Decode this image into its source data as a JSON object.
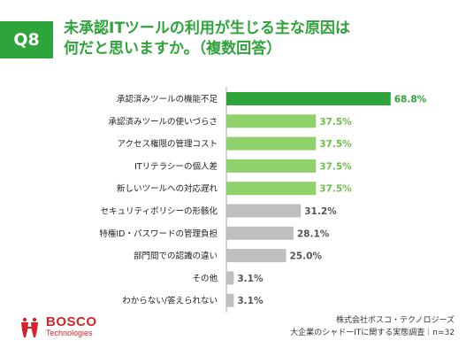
{
  "question": {
    "number": "Q8",
    "title_line1": "未承認ITツールの利用が生じる主な原因は",
    "title_line2": "何だと思いますか。（複数回答）"
  },
  "chart_data": {
    "type": "bar",
    "orientation": "horizontal",
    "categories": [
      "承認済みツールの機能不足",
      "承認済みツールの使いづらさ",
      "アクセス権限の管理コスト",
      "ITリテラシーの個人差",
      "新しいツールへの対応遅れ",
      "セキュリティポリシーの形骸化",
      "特権ID・パスワードの管理負担",
      "部門間での認識の違い",
      "その他",
      "わからない/答えられない"
    ],
    "values": [
      68.8,
      37.5,
      37.5,
      37.5,
      37.5,
      31.2,
      28.1,
      25.0,
      3.1,
      3.1
    ],
    "value_labels": [
      "68.8%",
      "37.5%",
      "37.5%",
      "37.5%",
      "37.5%",
      "31.2%",
      "28.1%",
      "25.0%",
      "3.1%",
      "3.1%"
    ],
    "xlim": [
      0,
      100
    ],
    "colors": {
      "top": "#2ea43a",
      "second": "#8fd16b",
      "rest": "#bfbfbf",
      "axis": "#aaaaaa",
      "top_label": "#2ea43a",
      "second_label": "#6cc04a",
      "rest_label": "#555555"
    }
  },
  "footer": {
    "logo_name": "BOSCO",
    "logo_sub": "Technologies",
    "source_line1": "株式会社ボスコ・テクノロジーズ",
    "source_line2": "大企業のシャドーITに関する実態調査｜n=32"
  },
  "icons": {
    "logo_mark": "bosco-logo-icon"
  }
}
